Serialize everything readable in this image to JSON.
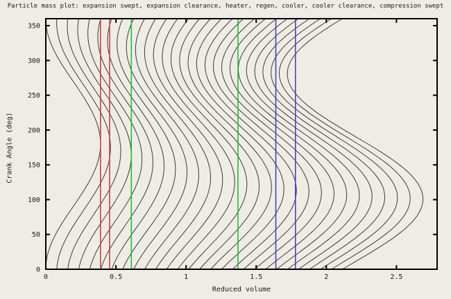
{
  "title": "Particle mass plot: expansion swept, expansion clearance, heater, regen, cooler, cooler clearance, compression swept",
  "chart_data": {
    "type": "line",
    "title": "Particle mass plot: expansion swept, expansion clearance, heater, regen, cooler, cooler clearance, compression swept",
    "xlabel": "Reduced volume",
    "ylabel": "Crank Angle (deg)",
    "xlim": [
      0,
      2.79
    ],
    "ylim": [
      0,
      360
    ],
    "xticks": [
      0,
      0.5,
      1,
      1.5,
      2,
      2.5
    ],
    "xtick_labels": [
      "0",
      "0.5",
      "1",
      "1.5",
      "2",
      "2.5"
    ],
    "yticks": [
      0,
      50,
      100,
      150,
      200,
      250,
      300,
      350
    ],
    "ytick_labels": [
      "0",
      "50",
      "100",
      "150",
      "200",
      "250",
      "300",
      "350"
    ],
    "grid": false,
    "legend": "none",
    "background_color": "#efece5",
    "curve_color": "#3a3a3a",
    "axis_color": "#000000",
    "num_particles": 28,
    "particle_fraction_rule": "curve i is the iso-mass-fraction trajectory f = i/28, i = 0..27",
    "model": {
      "description": "isothermal uniform-pressure Stirling model; particle position = cumulative reduced volume from expansion piston face",
      "expansion_swept_max": 0.39,
      "expansion_phase_deg": 0,
      "compression_swept_max": 1.0,
      "compression_phase_deg": 100,
      "dead_start": 0.39,
      "dead_end": 1.78,
      "fixed_sections": [
        {
          "name": "expansion clearance",
          "from": 0.39,
          "to": 0.455
        },
        {
          "name": "heater",
          "from": 0.455,
          "to": 0.61
        },
        {
          "name": "regen",
          "from": 0.61,
          "to": 1.37
        },
        {
          "name": "cooler",
          "from": 1.37,
          "to": 1.64
        },
        {
          "name": "cooler clearance",
          "from": 1.64,
          "to": 1.78
        }
      ],
      "observed_extents": {
        "left_gas_edge_max_v": 0.39,
        "left_gas_edge_max_at_deg": 180,
        "right_gas_edge_min_v": 1.78,
        "right_gas_edge_min_at_deg": 280,
        "right_gas_edge_max_v": 2.78,
        "right_gas_edge_max_at_deg": 100
      }
    },
    "boundary_lines": [
      {
        "name": "expansion-swept/expansion-clearance",
        "x": 0.39,
        "color": "#c04545"
      },
      {
        "name": "expansion-clearance/heater",
        "x": 0.455,
        "color": "#c04545"
      },
      {
        "name": "heater/regen",
        "x": 0.61,
        "color": "#18c232"
      },
      {
        "name": "regen/cooler",
        "x": 1.37,
        "color": "#18c232"
      },
      {
        "name": "cooler/cooler-clearance",
        "x": 1.64,
        "color": "#4343bd"
      },
      {
        "name": "cooler-clearance/compression-swept",
        "x": 1.78,
        "color": "#4343bd"
      }
    ]
  }
}
